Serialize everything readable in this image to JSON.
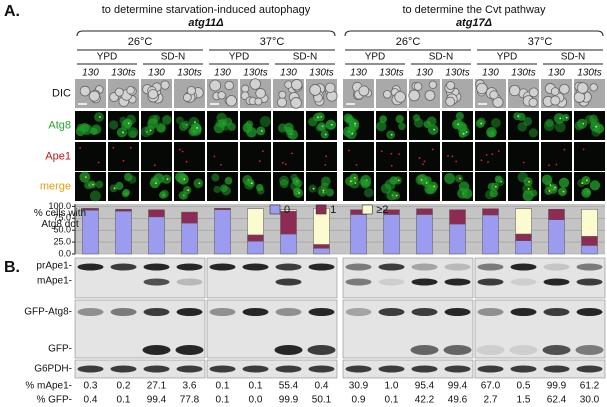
{
  "panel_labels": [
    "A.",
    "B."
  ],
  "groups": [
    {
      "title": "to determine starvation-induced autophagy",
      "strain": "atg11Δ"
    },
    {
      "title": "to determine the Cvt pathway",
      "strain": "atg17Δ"
    }
  ],
  "temperatures": [
    "26°C",
    "37°C"
  ],
  "media": [
    "YPD",
    "SD-N"
  ],
  "strains": [
    "130",
    "130ts"
  ],
  "image_rows": [
    "DIC",
    "Atg8",
    "Ape1",
    "merge"
  ],
  "chart_data": {
    "type": "bar",
    "stacked": true,
    "ylabel": "% cells with Atg8 dot",
    "categories": [
      null,
      null,
      null,
      null,
      null,
      null,
      null,
      null,
      null,
      null,
      null,
      null,
      null,
      null,
      null,
      null
    ],
    "series": [
      {
        "name": "0",
        "color": "#9b9bef",
        "values": [
          92,
          90,
          78,
          65,
          93,
          27,
          42,
          12,
          83,
          83,
          83,
          63,
          82,
          28,
          72,
          18
        ]
      },
      {
        "name": "1",
        "color": "#8e2b55",
        "values": [
          3,
          4,
          15,
          23,
          3,
          13,
          48,
          8,
          10,
          10,
          12,
          30,
          13,
          14,
          22,
          19
        ]
      },
      {
        "name": "≥2",
        "color": "#fbfbcf",
        "values": [
          1,
          0,
          0,
          0,
          0,
          55,
          3,
          76,
          0,
          0,
          0,
          0,
          0,
          53,
          0,
          57
        ]
      }
    ],
    "ylim": [
      0,
      105
    ],
    "yticks": [
      {
        "value": 0,
        "label": "0.0"
      },
      {
        "value": 25,
        "label": "25.0"
      },
      {
        "value": 50,
        "label": "50.0"
      },
      {
        "value": 75,
        "label": "75.0"
      },
      {
        "value": 100,
        "label": "100.0"
      }
    ],
    "grid": true
  },
  "blot_labels": [
    "prApe1-",
    "mApe1-",
    "GFP-Atg8-",
    "GFP-",
    "G6PDH-"
  ],
  "quantification": [
    {
      "label": "% mApe1-",
      "values": [
        "0.3",
        "0.2",
        "27.1",
        "3.6",
        "0.1",
        "0.1",
        "55.4",
        "0.4",
        "30.9",
        "1.0",
        "95.4",
        "99.4",
        "67.0",
        "0.5",
        "99.9",
        "61.2"
      ]
    },
    {
      "label": "% GFP-",
      "values": [
        "0.4",
        "0.1",
        "99.4",
        "77.8",
        "0.1",
        "0.0",
        "99.9",
        "50.1",
        "0.9",
        "0.1",
        "42.2",
        "49.6",
        "2.7",
        "1.5",
        "62.4",
        "30.0"
      ]
    }
  ]
}
